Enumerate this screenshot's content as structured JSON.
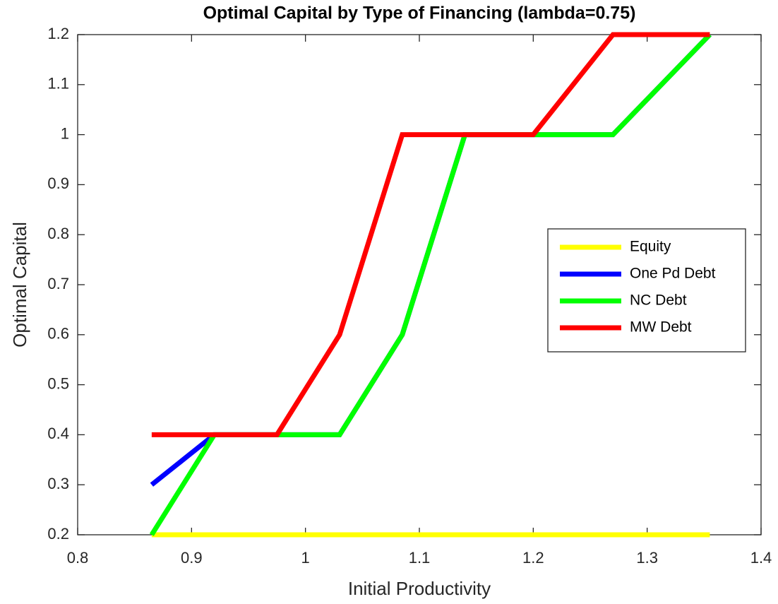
{
  "chart_data": {
    "type": "line",
    "title": "Optimal Capital by Type of Financing (lambda=0.75)",
    "x_label": "Initial Productivity",
    "y_label": "Optimal Capital",
    "x": [
      0.865,
      0.92,
      0.975,
      1.03,
      1.085,
      1.14,
      1.2,
      1.27,
      1.355
    ],
    "series": [
      {
        "name": "Equity",
        "color": "#ffff00",
        "values": [
          0.2,
          0.2,
          0.2,
          0.2,
          0.2,
          0.2,
          0.2,
          0.2,
          0.2
        ]
      },
      {
        "name": "One Pd Debt",
        "color": "#0000ff",
        "values": [
          0.3,
          0.4,
          0.4,
          0.4,
          0.6,
          1,
          1,
          1,
          1.2
        ]
      },
      {
        "name": "NC Debt",
        "color": "#00ff00",
        "values": [
          0.2,
          0.4,
          0.4,
          0.4,
          0.6,
          1,
          1,
          1,
          1.2
        ]
      },
      {
        "name": "MW Debt",
        "color": "#ff0000",
        "values": [
          0.4,
          0.4,
          0.4,
          0.6,
          1,
          1,
          1,
          1.2,
          1.2
        ]
      }
    ],
    "xlim": [
      0.8,
      1.4
    ],
    "xticks": [
      0.8,
      0.9,
      1,
      1.1,
      1.2,
      1.3,
      1.4
    ],
    "ylim": [
      0.2,
      1.2
    ],
    "yticks": [
      0.2,
      0.3,
      0.4,
      0.5,
      0.6,
      0.7,
      0.8,
      0.9,
      1,
      1.1,
      1.2
    ],
    "grid": false,
    "legend_position": "right"
  }
}
